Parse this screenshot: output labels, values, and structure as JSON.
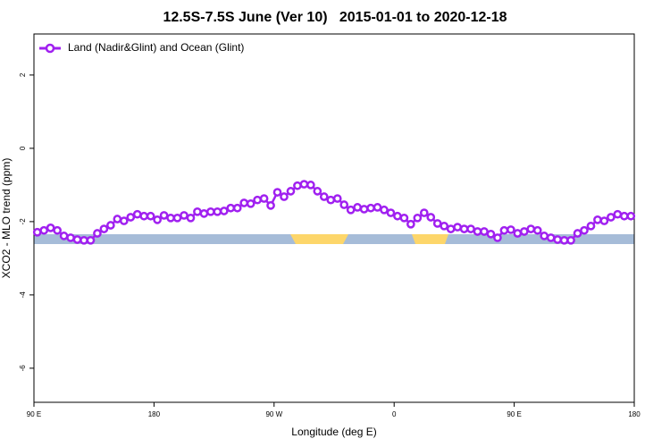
{
  "chart_data": {
    "type": "line",
    "title": "12.5S-7.5S June (Ver 10)   2015-01-01 to 2020-12-18",
    "x_label": "Longitude (deg E)",
    "y_label": "XCO2 - MLO trend (ppm)",
    "legend": "upper left",
    "grid": false,
    "xlim": [
      90,
      540
    ],
    "ylim": [
      -6.93,
      3.12
    ],
    "xticks": [
      {
        "value": 90,
        "label": "90 E"
      },
      {
        "value": 180,
        "label": "180"
      },
      {
        "value": 270,
        "label": "90 W"
      },
      {
        "value": 360,
        "label": "0"
      },
      {
        "value": 450,
        "label": "90 E"
      },
      {
        "value": 540,
        "label": "180"
      }
    ],
    "yticks": [
      2,
      0,
      -2,
      -4,
      -6
    ],
    "x": [
      92.5,
      97.5,
      102.5,
      107.5,
      112.5,
      117.5,
      122.5,
      127.5,
      132.5,
      137.5,
      142.5,
      147.5,
      152.5,
      157.5,
      162.5,
      167.5,
      172.5,
      177.5,
      182.5,
      187.5,
      192.5,
      197.5,
      202.5,
      207.5,
      212.5,
      217.5,
      222.5,
      227.5,
      232.5,
      237.5,
      242.5,
      247.5,
      252.5,
      257.5,
      262.5,
      267.5,
      272.5,
      277.5,
      282.5,
      287.5,
      292.5,
      297.5,
      302.5,
      307.5,
      312.5,
      317.5,
      322.5,
      327.5,
      332.5,
      337.5,
      342.5,
      347.5,
      352.5,
      357.5,
      362.5,
      367.5,
      372.5,
      377.5,
      382.5,
      387.5,
      392.5,
      397.5,
      402.5,
      407.5,
      412.5,
      417.5,
      422.5,
      427.5,
      432.5,
      437.5,
      442.5,
      447.5,
      452.5,
      457.5,
      462.5,
      467.5,
      472.5,
      477.5,
      482.5,
      487.5,
      492.5,
      497.5,
      502.5,
      507.5,
      512.5,
      517.5,
      522.5,
      527.5,
      532.5,
      537.5
    ],
    "series": [
      {
        "name": "Land (Nadir&Glint) and Ocean (Glint)",
        "color": "#a020f0",
        "values": [
          -2.29,
          -2.24,
          -2.17,
          -2.24,
          -2.39,
          -2.44,
          -2.49,
          -2.51,
          -2.51,
          -2.32,
          -2.2,
          -2.1,
          -1.93,
          -1.98,
          -1.88,
          -1.8,
          -1.85,
          -1.85,
          -1.95,
          -1.83,
          -1.9,
          -1.9,
          -1.83,
          -1.9,
          -1.73,
          -1.78,
          -1.73,
          -1.73,
          -1.71,
          -1.63,
          -1.63,
          -1.49,
          -1.51,
          -1.41,
          -1.37,
          -1.56,
          -1.2,
          -1.32,
          -1.17,
          -1.02,
          -0.98,
          -1.0,
          -1.17,
          -1.32,
          -1.41,
          -1.37,
          -1.54,
          -1.68,
          -1.61,
          -1.66,
          -1.63,
          -1.61,
          -1.68,
          -1.76,
          -1.85,
          -1.9,
          -2.07,
          -1.9,
          -1.76,
          -1.88,
          -2.05,
          -2.12,
          -2.2,
          -2.15,
          -2.2,
          -2.2,
          -2.27,
          -2.27,
          -2.34,
          -2.44,
          -2.24,
          -2.22,
          -2.32,
          -2.27,
          -2.2,
          -2.24,
          -2.39,
          -2.44,
          -2.49,
          -2.51,
          -2.51,
          -2.32,
          -2.24,
          -2.12,
          -1.95,
          -1.98,
          -1.88,
          -1.8,
          -1.85,
          -1.85
        ]
      }
    ]
  }
}
